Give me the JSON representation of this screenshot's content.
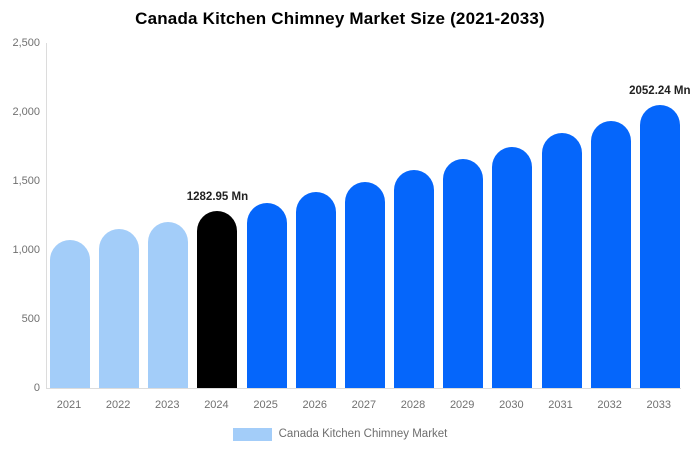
{
  "chart_data": {
    "type": "bar",
    "title": "Canada Kitchen Chimney Market Size (2021-2033)",
    "categories": [
      "2021",
      "2022",
      "2023",
      "2024",
      "2025",
      "2026",
      "2027",
      "2028",
      "2029",
      "2030",
      "2031",
      "2032",
      "2033"
    ],
    "values": [
      1070,
      1150,
      1200,
      1282.95,
      1340,
      1420,
      1490,
      1580,
      1660,
      1745,
      1845,
      1935,
      2052.24
    ],
    "unit": "Mn",
    "xlabel": "",
    "ylabel": "",
    "ylim": [
      0,
      2500
    ],
    "yticks": [
      0,
      500,
      1000,
      1500,
      2000,
      2500
    ],
    "ytick_labels": [
      "0",
      "500",
      "1,000",
      "1,500",
      "2,000",
      "2,500"
    ],
    "grid": false,
    "colors": [
      "#a3cdf9",
      "#a3cdf9",
      "#a3cdf9",
      "#000000",
      "#0566fb",
      "#0566fb",
      "#0566fb",
      "#0566fb",
      "#0566fb",
      "#0566fb",
      "#0566fb",
      "#0566fb",
      "#0566fb"
    ],
    "annotations": [
      {
        "category": "2024",
        "text": "1282.95 Mn"
      },
      {
        "category": "2033",
        "text": "2052.24 Mn"
      }
    ],
    "legend": {
      "position": "bottom",
      "label": "Canada Kitchen Chimney Market",
      "swatch_color": "#a3cdf9"
    },
    "axis_color": "#dcdcdc",
    "tick_label_color": "#707070"
  }
}
